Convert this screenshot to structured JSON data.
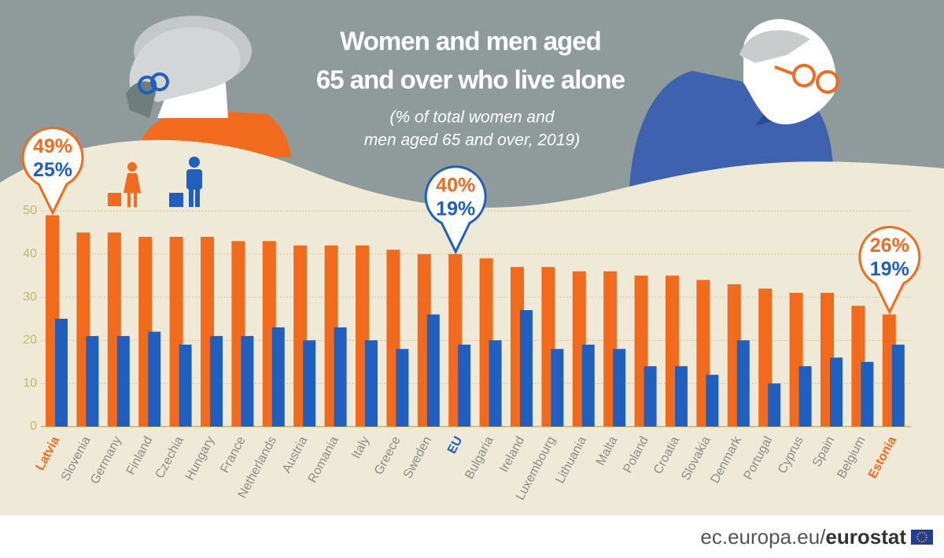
{
  "chart_data": {
    "type": "bar",
    "title": [
      "Women and men aged",
      "65 and over who live alone"
    ],
    "subtitle": [
      "(% of total women and",
      "men aged 65 and over, 2019)"
    ],
    "categories": [
      "Latvia",
      "Slovenia",
      "Germany",
      "Finland",
      "Czechia",
      "Hungary",
      "France",
      "Netherlands",
      "Austria",
      "Romania",
      "Italy",
      "Greece",
      "Sweden",
      "EU",
      "Bulgaria",
      "Ireland",
      "Luxembourg",
      "Lithuania",
      "Malta",
      "Poland",
      "Croatia",
      "Slovakia",
      "Denmark",
      "Portugal",
      "Cyprus",
      "Spain",
      "Belgium",
      "Estonia"
    ],
    "category_colors": {
      "Latvia": "#f26b1d",
      "EU": "#1f5fbf",
      "Estonia": "#f26b1d"
    },
    "series": [
      {
        "color": "#f26b1d",
        "values": [
          49,
          45,
          45,
          44,
          44,
          44,
          43,
          43,
          42,
          42,
          42,
          41,
          40,
          40,
          39,
          37,
          37,
          36,
          36,
          35,
          35,
          34,
          33,
          32,
          31,
          31,
          28,
          26
        ],
        "value_labels": [
          "49%",
          null,
          null,
          null,
          null,
          null,
          null,
          null,
          null,
          null,
          null,
          null,
          null,
          "40%",
          null,
          null,
          null,
          null,
          null,
          null,
          null,
          null,
          null,
          null,
          null,
          null,
          null,
          "26%"
        ]
      },
      {
        "color": "#1f5fbf",
        "values": [
          25,
          21,
          21,
          22,
          19,
          21,
          21,
          23,
          20,
          23,
          20,
          18,
          26,
          19,
          20,
          27,
          18,
          19,
          18,
          14,
          14,
          12,
          20,
          10,
          14,
          16,
          15,
          19
        ],
        "value_labels": [
          "25%",
          null,
          null,
          null,
          null,
          null,
          null,
          null,
          null,
          null,
          null,
          null,
          null,
          "19%",
          null,
          null,
          null,
          null,
          null,
          null,
          null,
          null,
          null,
          null,
          null,
          null,
          null,
          "19%"
        ]
      }
    ],
    "ylim": [
      0,
      50
    ],
    "yticks": [
      0,
      10,
      20,
      30,
      40,
      50
    ],
    "grid": true,
    "source": {
      "domain": "ec.europa.eu/",
      "name": "eurostat"
    }
  }
}
